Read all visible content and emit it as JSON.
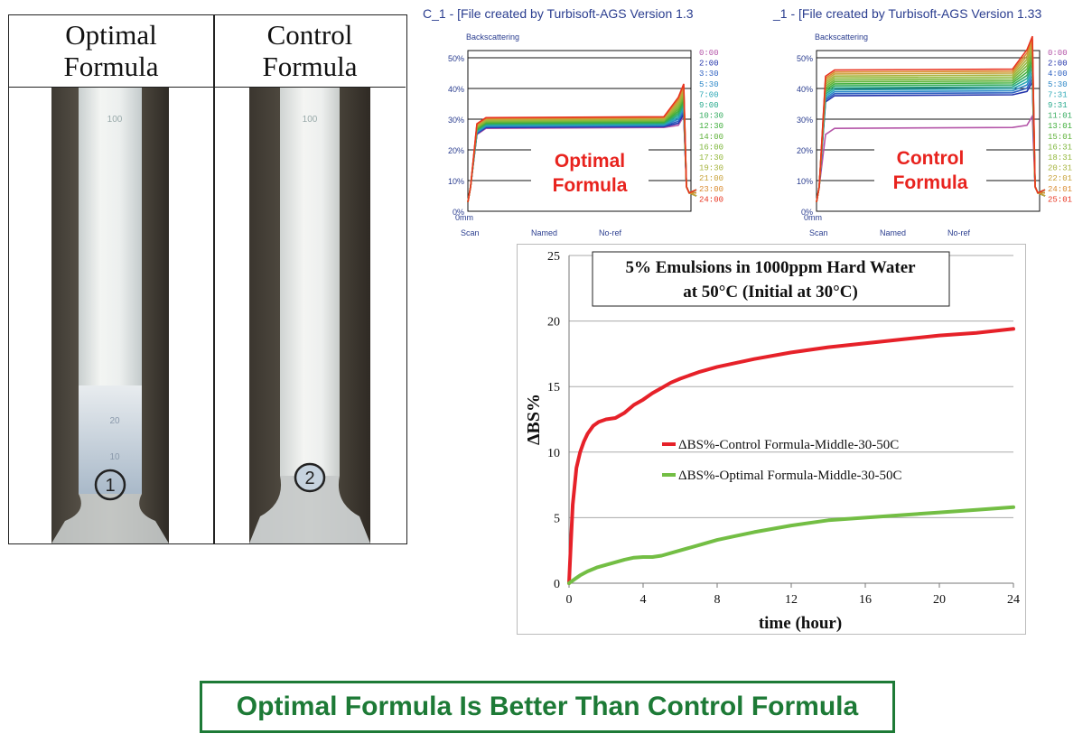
{
  "photo_table": {
    "left_heading": [
      "Optimal",
      "Formula"
    ],
    "right_heading": [
      "Control",
      "Formula"
    ],
    "cyl1_marks": [
      "100",
      "20",
      "10"
    ],
    "cyl1_label": "1",
    "cyl2_marks": [
      "100"
    ],
    "cyl2_label": "2"
  },
  "turbiscan": {
    "left": {
      "title": "C_1 - [File created by Turbisoft-AGS Version 1.3",
      "y_title": "Backscattering",
      "y_ticks": [
        "50%",
        "40%",
        "30%",
        "20%",
        "10%",
        "0%"
      ],
      "x_start": "0mm",
      "footer": [
        "Scan",
        "Named",
        "No-ref"
      ],
      "overlay": [
        "Optimal",
        "Formula"
      ],
      "times": [
        "0:00",
        "2:00",
        "3:30",
        "5:30",
        "7:00",
        "9:00",
        "10:30",
        "12:30",
        "14:00",
        "16:00",
        "17:30",
        "19:30",
        "21:00",
        "23:00",
        "24:00"
      ],
      "colors": [
        "#b455a8",
        "#2233aa",
        "#2b5fc0",
        "#2d88c8",
        "#2aa7b5",
        "#25a98c",
        "#34ab5e",
        "#3fae3b",
        "#5fb23a",
        "#7cb63a",
        "#93b83b",
        "#a6b33d",
        "#c8a23a",
        "#d98a2e",
        "#e8331f"
      ]
    },
    "right": {
      "title": "_1 - [File created by Turbisoft-AGS Version 1.33",
      "y_title": "Backscattering",
      "y_ticks": [
        "50%",
        "40%",
        "30%",
        "20%",
        "10%",
        "0%"
      ],
      "x_start": "0mm",
      "footer": [
        "Scan",
        "Named",
        "No-ref"
      ],
      "overlay": [
        "Control",
        "Formula"
      ],
      "times": [
        "0:00",
        "2:00",
        "4:00",
        "5:30",
        "7:31",
        "9:31",
        "11:01",
        "13:01",
        "15:01",
        "16:31",
        "18:31",
        "20:31",
        "22:01",
        "24:01",
        "25:01"
      ],
      "colors": [
        "#b455a8",
        "#2233aa",
        "#2b5fc0",
        "#2d88c8",
        "#2aa7b5",
        "#25a98c",
        "#34ab5e",
        "#3fae3b",
        "#5fb23a",
        "#7cb63a",
        "#93b83b",
        "#a6b33d",
        "#c8a23a",
        "#d98a2e",
        "#e8331f"
      ]
    }
  },
  "chart_data": {
    "type": "line",
    "title": [
      "5% Emulsions in 1000ppm Hard Water",
      "at 50°C (Initial at 30°C)"
    ],
    "xlabel": "time (hour)",
    "ylabel": "ΔBS%",
    "xlim": [
      0,
      24
    ],
    "ylim": [
      0,
      25
    ],
    "x_ticks": [
      0,
      4,
      8,
      12,
      16,
      20,
      24
    ],
    "y_ticks": [
      0,
      5,
      10,
      15,
      20,
      25
    ],
    "grid": "horizontal",
    "legend_position": "center-right",
    "series": [
      {
        "name": "ΔBS%-Control Formula-Middle-30-50C",
        "color": "#e62129",
        "x": [
          0,
          0.1,
          0.2,
          0.4,
          0.6,
          0.8,
          1.0,
          1.3,
          1.6,
          2.0,
          2.5,
          3.0,
          3.5,
          4.0,
          4.5,
          5.0,
          5.5,
          6.0,
          7.0,
          8.0,
          9.0,
          10.0,
          12.0,
          14.0,
          16.0,
          18.0,
          20.0,
          22.0,
          24.0
        ],
        "values": [
          0,
          3.0,
          6.0,
          8.8,
          10.0,
          10.8,
          11.4,
          12.0,
          12.3,
          12.5,
          12.6,
          13.0,
          13.6,
          14.0,
          14.5,
          14.9,
          15.3,
          15.6,
          16.1,
          16.5,
          16.8,
          17.1,
          17.6,
          18.0,
          18.3,
          18.6,
          18.9,
          19.1,
          19.4
        ]
      },
      {
        "name": "ΔBS%-Optimal Formula-Middle-30-50C",
        "color": "#73be44",
        "x": [
          0,
          0.3,
          0.6,
          1.0,
          1.5,
          2.0,
          2.5,
          3.0,
          3.5,
          4.0,
          4.5,
          5.0,
          6.0,
          7.0,
          8.0,
          9.0,
          10.0,
          12.0,
          14.0,
          16.0,
          18.0,
          20.0,
          22.0,
          24.0
        ],
        "values": [
          0,
          0.3,
          0.6,
          0.9,
          1.2,
          1.4,
          1.6,
          1.8,
          1.95,
          2.0,
          2.0,
          2.1,
          2.5,
          2.9,
          3.3,
          3.6,
          3.9,
          4.4,
          4.8,
          5.0,
          5.2,
          5.4,
          5.6,
          5.8
        ]
      }
    ]
  },
  "conclusion": "Optimal Formula Is Better Than Control Formula"
}
